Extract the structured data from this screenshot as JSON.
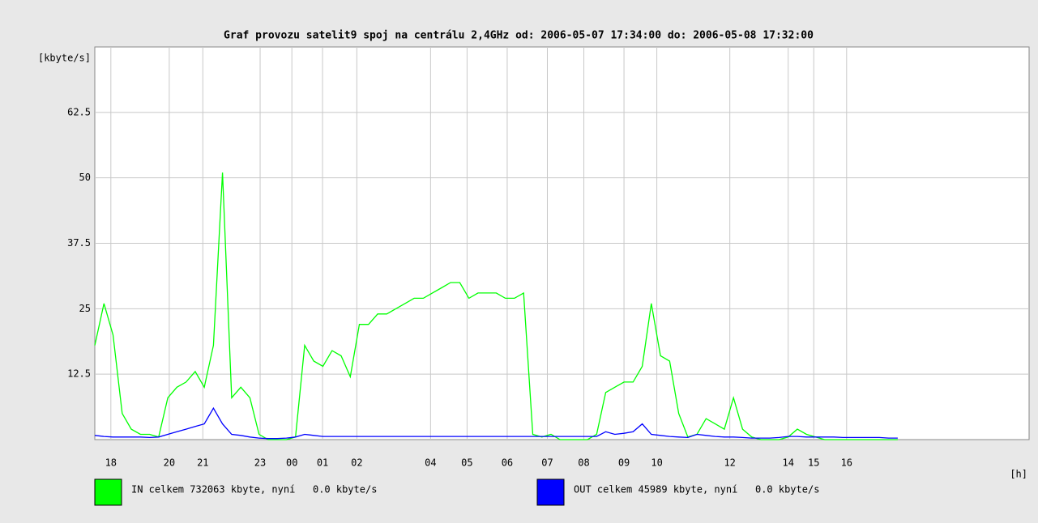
{
  "chart_data": {
    "type": "line",
    "title": "Graf provozu satelit9 spoj na centrálu 2,4GHz od: 2006-05-07 17:34:00 do: 2006-05-08 17:32:00",
    "y_label": "[kbyte/s]",
    "x_label": "[h]",
    "x": [
      0,
      0.25,
      0.5,
      0.75,
      1,
      1.25,
      1.5,
      1.75,
      2,
      2.25,
      2.5,
      2.75,
      3,
      3.25,
      3.5,
      3.75,
      4,
      4.25,
      4.5,
      4.75,
      5,
      5.25,
      5.5,
      5.75,
      6,
      6.25,
      6.5,
      6.75,
      7,
      7.25,
      7.5,
      7.75,
      8,
      8.25,
      8.5,
      8.75,
      9,
      9.25,
      9.5,
      9.75,
      10,
      10.25,
      10.5,
      10.75,
      11,
      11.25,
      11.5,
      11.75,
      12,
      12.25,
      12.5,
      12.75,
      13,
      13.25,
      13.5,
      13.75,
      14,
      14.25,
      14.5,
      14.75,
      15,
      15.25,
      15.5,
      15.75,
      16,
      16.25,
      16.5,
      16.75,
      17,
      17.25,
      17.5,
      17.75,
      18,
      18.25,
      18.5,
      18.75,
      19,
      19.25,
      19.5,
      19.75,
      20,
      20.25,
      20.5,
      20.75,
      21,
      21.25,
      21.5,
      21.75,
      22
    ],
    "series": [
      {
        "name": "IN celkem 732063 kbyte, nyní   0.0 kbyte/s",
        "color": "#00ff00",
        "values": [
          18,
          26,
          20,
          5,
          2,
          1,
          1,
          0.5,
          8,
          10,
          11,
          13,
          10,
          18,
          51,
          8,
          10,
          8,
          1,
          0,
          0,
          0,
          0.5,
          18,
          15,
          14,
          17,
          16,
          12,
          22,
          22,
          24,
          24,
          25,
          26,
          27,
          27,
          28,
          29,
          30,
          30,
          27,
          28,
          28,
          28,
          27,
          27,
          28,
          1,
          0.5,
          1,
          0,
          0,
          0,
          0,
          1,
          9,
          10,
          11,
          11,
          14,
          26,
          16,
          15,
          5,
          0.5,
          1,
          4,
          3,
          2,
          8,
          2,
          0.5,
          0,
          0,
          0,
          0.5,
          2,
          1,
          0.5,
          0,
          0,
          0,
          0,
          0,
          0,
          0,
          0,
          0
        ]
      },
      {
        "name": "OUT celkem 45989 kbyte, nyní   0.0 kbyte/s",
        "color": "#0000ff",
        "values": [
          0.8,
          0.6,
          0.5,
          0.5,
          0.5,
          0.5,
          0.4,
          0.5,
          1,
          1.5,
          2,
          2.5,
          3,
          6,
          3,
          1,
          0.8,
          0.5,
          0.3,
          0.2,
          0.2,
          0.3,
          0.5,
          1,
          0.8,
          0.6,
          0.6,
          0.6,
          0.6,
          0.6,
          0.6,
          0.6,
          0.6,
          0.6,
          0.6,
          0.6,
          0.6,
          0.6,
          0.6,
          0.6,
          0.6,
          0.6,
          0.6,
          0.6,
          0.6,
          0.6,
          0.6,
          0.6,
          0.6,
          0.6,
          0.6,
          0.6,
          0.6,
          0.6,
          0.6,
          0.6,
          1.5,
          1,
          1.2,
          1.5,
          3,
          1,
          0.8,
          0.6,
          0.5,
          0.4,
          1,
          0.8,
          0.6,
          0.5,
          0.5,
          0.4,
          0.3,
          0.3,
          0.3,
          0.4,
          0.6,
          0.6,
          0.5,
          0.5,
          0.5,
          0.5,
          0.4,
          0.4,
          0.4,
          0.4,
          0.4,
          0.3,
          0.3
        ]
      }
    ],
    "xlim": [
      0,
      25.6
    ],
    "xticks": [
      {
        "value": 0.44,
        "label": "18"
      },
      {
        "value": 2.04,
        "label": "20"
      },
      {
        "value": 2.96,
        "label": "21"
      },
      {
        "value": 4.53,
        "label": "23"
      },
      {
        "value": 5.4,
        "label": "00"
      },
      {
        "value": 6.24,
        "label": "01"
      },
      {
        "value": 7.18,
        "label": "02"
      },
      {
        "value": 9.2,
        "label": "04"
      },
      {
        "value": 10.2,
        "label": "05"
      },
      {
        "value": 11.3,
        "label": "06"
      },
      {
        "value": 12.4,
        "label": "07"
      },
      {
        "value": 13.4,
        "label": "08"
      },
      {
        "value": 14.5,
        "label": "09"
      },
      {
        "value": 15.4,
        "label": "10"
      },
      {
        "value": 17.4,
        "label": "12"
      },
      {
        "value": 19.0,
        "label": "14"
      },
      {
        "value": 19.7,
        "label": "15"
      },
      {
        "value": 20.6,
        "label": "16"
      }
    ],
    "ylim": [
      0,
      75
    ],
    "yticks": [
      12.5,
      25,
      37.5,
      50,
      62.5
    ],
    "grid": true
  }
}
